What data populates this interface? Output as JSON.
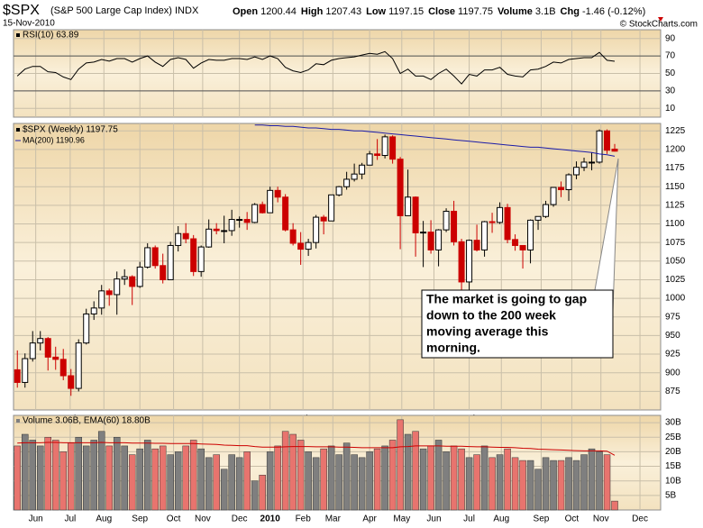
{
  "header": {
    "title": "$SPX",
    "subtitle": "(S&P 500 Large Cap Index) INDX",
    "date": "15-Nov-2010",
    "credit": "© StockCharts.com",
    "quote": [
      {
        "label": "Open",
        "value": "1200.44"
      },
      {
        "label": "High",
        "value": "1207.43"
      },
      {
        "label": "Low",
        "value": "1197.15"
      },
      {
        "label": "Close",
        "value": "1197.75"
      },
      {
        "label": "Volume",
        "value": "3.1B"
      },
      {
        "label": "Chg",
        "value": "-1.46 (-0.12%)"
      }
    ]
  },
  "chart_data": [
    {
      "type": "line",
      "legend": "RSI(10) 63.89",
      "color": "#000000",
      "xlim": [
        -0.5,
        84
      ],
      "ylim": [
        0,
        100
      ],
      "yticks": [
        10,
        30,
        50,
        70,
        90
      ],
      "ref_lines": [
        30,
        70
      ],
      "values": [
        47,
        55,
        58,
        58,
        52,
        51,
        46,
        43,
        55,
        62,
        63,
        66,
        64,
        67,
        67,
        63,
        67,
        70,
        63,
        58,
        66,
        68,
        66,
        56,
        62,
        66,
        65,
        65,
        67,
        67,
        66,
        69,
        66,
        70,
        67,
        57,
        53,
        51,
        54,
        61,
        60,
        65,
        67,
        68,
        69,
        71,
        73,
        72,
        75,
        67,
        50,
        55,
        47,
        47,
        43,
        50,
        55,
        47,
        38,
        49,
        47,
        54,
        54,
        57,
        49,
        47,
        46,
        54,
        55,
        58,
        63,
        62,
        66,
        67,
        68,
        68,
        74,
        65,
        63.89
      ]
    },
    {
      "type": "candlestick",
      "legend": "$SPX (Weekly) 1197.75",
      "up_color": "#000000",
      "down_color": "#cc0000",
      "xlim": [
        -0.5,
        84
      ],
      "ylim": [
        850,
        1235
      ],
      "yticks": [
        875,
        900,
        925,
        950,
        975,
        1000,
        1025,
        1050,
        1075,
        1100,
        1125,
        1150,
        1175,
        1200,
        1225
      ],
      "xticks": [
        {
          "value": 2.4,
          "label": "Jun"
        },
        {
          "value": 6.9,
          "label": "Jul"
        },
        {
          "value": 11.3,
          "label": "Aug"
        },
        {
          "value": 16,
          "label": "Sep"
        },
        {
          "value": 20.4,
          "label": "Oct"
        },
        {
          "value": 24.2,
          "label": "Nov"
        },
        {
          "value": 29,
          "label": "Dec"
        },
        {
          "value": 33,
          "label": "2010"
        },
        {
          "value": 37.3,
          "label": "Feb"
        },
        {
          "value": 41.2,
          "label": "Mar"
        },
        {
          "value": 46,
          "label": "Apr"
        },
        {
          "value": 50.2,
          "label": "May"
        },
        {
          "value": 54.4,
          "label": "Jun"
        },
        {
          "value": 59,
          "label": "Jul"
        },
        {
          "value": 63.2,
          "label": "Aug"
        },
        {
          "value": 68.4,
          "label": "Sep"
        },
        {
          "value": 72.4,
          "label": "Oct"
        },
        {
          "value": 76.2,
          "label": "Nov"
        },
        {
          "value": 81.3,
          "label": "Dec"
        }
      ],
      "open": [
        904,
        887,
        919,
        940,
        946,
        921,
        918,
        896,
        879,
        940,
        979,
        987,
        1010,
        1005,
        1026,
        1029,
        1016,
        1042,
        1068,
        1044,
        1025,
        1071,
        1087,
        1080,
        1036,
        1069,
        1093,
        1091,
        1091,
        1106,
        1106,
        1102,
        1126,
        1115,
        1145,
        1136,
        1092,
        1074,
        1066,
        1075,
        1109,
        1104,
        1139,
        1150,
        1160,
        1167,
        1179,
        1194,
        1192,
        1217,
        1187,
        1111,
        1136,
        1088,
        1089,
        1065,
        1092,
        1117,
        1076,
        1022,
        1078,
        1065,
        1103,
        1102,
        1122,
        1079,
        1071,
        1065,
        1105,
        1110,
        1126,
        1149,
        1146,
        1166,
        1176,
        1183,
        1183,
        1225,
        1200.44
      ],
      "high": [
        930,
        926,
        956,
        956,
        948,
        935,
        932,
        905,
        945,
        986,
        996,
        1018,
        1013,
        1036,
        1039,
        1031,
        1049,
        1074,
        1071,
        1060,
        1076,
        1097,
        1101,
        1085,
        1071,
        1106,
        1101,
        1111,
        1119,
        1110,
        1116,
        1128,
        1130,
        1150,
        1150,
        1140,
        1101,
        1089,
        1080,
        1112,
        1112,
        1139,
        1151,
        1170,
        1181,
        1182,
        1198,
        1214,
        1220,
        1219,
        1190,
        1173,
        1137,
        1104,
        1105,
        1093,
        1121,
        1131,
        1080,
        1079,
        1099,
        1104,
        1115,
        1129,
        1127,
        1086,
        1071,
        1106,
        1110,
        1131,
        1149,
        1157,
        1168,
        1184,
        1189,
        1196,
        1227,
        1227,
        1207.43
      ],
      "low": [
        880,
        880,
        915,
        930,
        903,
        904,
        890,
        869,
        875,
        938,
        971,
        978,
        990,
        978,
        1018,
        991,
        1014,
        1040,
        1040,
        1020,
        1025,
        1063,
        1074,
        1030,
        1029,
        1068,
        1086,
        1074,
        1084,
        1095,
        1092,
        1101,
        1114,
        1115,
        1129,
        1090,
        1071,
        1045,
        1057,
        1067,
        1086,
        1104,
        1137,
        1146,
        1157,
        1160,
        1179,
        1186,
        1188,
        1181,
        1066,
        1111,
        1056,
        1042,
        1060,
        1043,
        1089,
        1071,
        1011,
        1011,
        1063,
        1056,
        1088,
        1100,
        1074,
        1064,
        1040,
        1047,
        1092,
        1108,
        1123,
        1136,
        1131,
        1160,
        1171,
        1172,
        1181,
        1194,
        1197.15
      ],
      "close": [
        887,
        919,
        940,
        946,
        921,
        918,
        896,
        879,
        940,
        979,
        987,
        1010,
        1005,
        1026,
        1029,
        1016,
        1042,
        1068,
        1044,
        1025,
        1071,
        1087,
        1080,
        1036,
        1069,
        1093,
        1091,
        1091,
        1106,
        1106,
        1102,
        1126,
        1115,
        1145,
        1136,
        1092,
        1074,
        1066,
        1075,
        1109,
        1104,
        1139,
        1150,
        1160,
        1167,
        1179,
        1194,
        1192,
        1217,
        1187,
        1111,
        1136,
        1088,
        1089,
        1065,
        1092,
        1117,
        1076,
        1022,
        1078,
        1065,
        1103,
        1102,
        1122,
        1079,
        1071,
        1065,
        1105,
        1110,
        1126,
        1149,
        1146,
        1166,
        1176,
        1183,
        1183,
        1225,
        1199,
        1197.75
      ],
      "ma": {
        "name": "MA(200) 1190.96",
        "color": "#1c1ca8",
        "values": [
          null,
          null,
          null,
          null,
          null,
          null,
          null,
          null,
          null,
          null,
          null,
          null,
          null,
          null,
          null,
          null,
          null,
          null,
          null,
          null,
          null,
          null,
          null,
          null,
          null,
          null,
          null,
          null,
          null,
          null,
          null,
          1233,
          1233,
          1232,
          1232,
          1231,
          1231,
          1230,
          1229,
          1229,
          1228,
          1227,
          1227,
          1226,
          1225,
          1225,
          1224,
          1223,
          1222,
          1221,
          1220,
          1219,
          1218,
          1217,
          1216,
          1215,
          1214,
          1213,
          1212,
          1211,
          1210,
          1209,
          1208,
          1207,
          1206,
          1205,
          1204,
          1203,
          1203,
          1202,
          1201,
          1200,
          1199,
          1198,
          1197,
          1196,
          1194,
          1193,
          1190.96
        ]
      },
      "annotation": [
        "The market is going to gap",
        "down to the 200 week",
        "moving average this",
        "morning."
      ]
    },
    {
      "type": "bar",
      "legend": "Volume 3.06B, EMA(60) 18.80B",
      "up_color": "#7f7f7f",
      "down_color": "#e8746e",
      "xlim": [
        -0.5,
        84
      ],
      "ylim": [
        0,
        32.5
      ],
      "yticks": [
        {
          "value": 5,
          "label": "5B"
        },
        {
          "value": 10,
          "label": "10B"
        },
        {
          "value": 15,
          "label": "15B"
        },
        {
          "value": 20,
          "label": "20B"
        },
        {
          "value": 25,
          "label": "25B"
        },
        {
          "value": 30,
          "label": "30B"
        }
      ],
      "xticks": [
        {
          "value": 2.4,
          "label": "Jun"
        },
        {
          "value": 6.9,
          "label": "Jul"
        },
        {
          "value": 11.3,
          "label": "Aug"
        },
        {
          "value": 16,
          "label": "Sep"
        },
        {
          "value": 20.4,
          "label": "Oct"
        },
        {
          "value": 24.2,
          "label": "Nov"
        },
        {
          "value": 29,
          "label": "Dec"
        },
        {
          "value": 33,
          "label": "2010"
        },
        {
          "value": 37.3,
          "label": "Feb"
        },
        {
          "value": 41.2,
          "label": "Mar"
        },
        {
          "value": 46,
          "label": "Apr"
        },
        {
          "value": 50.2,
          "label": "May"
        },
        {
          "value": 54.4,
          "label": "Jun"
        },
        {
          "value": 59,
          "label": "Jul"
        },
        {
          "value": 63.2,
          "label": "Aug"
        },
        {
          "value": 68.4,
          "label": "Sep"
        },
        {
          "value": 72.4,
          "label": "Oct"
        },
        {
          "value": 76.2,
          "label": "Nov"
        },
        {
          "value": 81.3,
          "label": "Dec"
        }
      ],
      "values": [
        22,
        26,
        24,
        22,
        25,
        24,
        20,
        23,
        25,
        22,
        24,
        27,
        22,
        25,
        22,
        19,
        21,
        24,
        21,
        22,
        19,
        20,
        22,
        24,
        21,
        18,
        19,
        14,
        19,
        18,
        20,
        10,
        12,
        20,
        22,
        27,
        26,
        24,
        20,
        18,
        21,
        22,
        19,
        23,
        19,
        18,
        20,
        21,
        22,
        24,
        31,
        26,
        27,
        21,
        22,
        24,
        20,
        22,
        21,
        18,
        19,
        22,
        18,
        19,
        21,
        18,
        17,
        17,
        14,
        18,
        17,
        17,
        18,
        17,
        19,
        21,
        20,
        19,
        3.06
      ],
      "ema": {
        "color": "#cc0000",
        "values": [
          23.0,
          23.1,
          23.1,
          23.1,
          23.2,
          23.2,
          23.1,
          23.1,
          23.1,
          23.1,
          23.1,
          23.2,
          23.1,
          23.1,
          23.1,
          23.0,
          23.0,
          23.0,
          22.9,
          22.9,
          22.8,
          22.8,
          22.8,
          22.8,
          22.7,
          22.6,
          22.5,
          22.3,
          22.2,
          22.1,
          22.1,
          21.8,
          21.6,
          21.6,
          21.6,
          21.7,
          21.8,
          21.8,
          21.8,
          21.7,
          21.7,
          21.7,
          21.6,
          21.6,
          21.5,
          21.4,
          21.4,
          21.4,
          21.4,
          21.4,
          21.7,
          21.8,
          22.0,
          22.0,
          22.0,
          22.0,
          21.9,
          21.9,
          21.9,
          21.8,
          21.7,
          21.7,
          21.6,
          21.5,
          21.5,
          21.4,
          21.2,
          21.1,
          20.9,
          20.8,
          20.7,
          20.6,
          20.5,
          20.4,
          20.3,
          20.3,
          20.3,
          20.2,
          18.8
        ]
      }
    }
  ]
}
